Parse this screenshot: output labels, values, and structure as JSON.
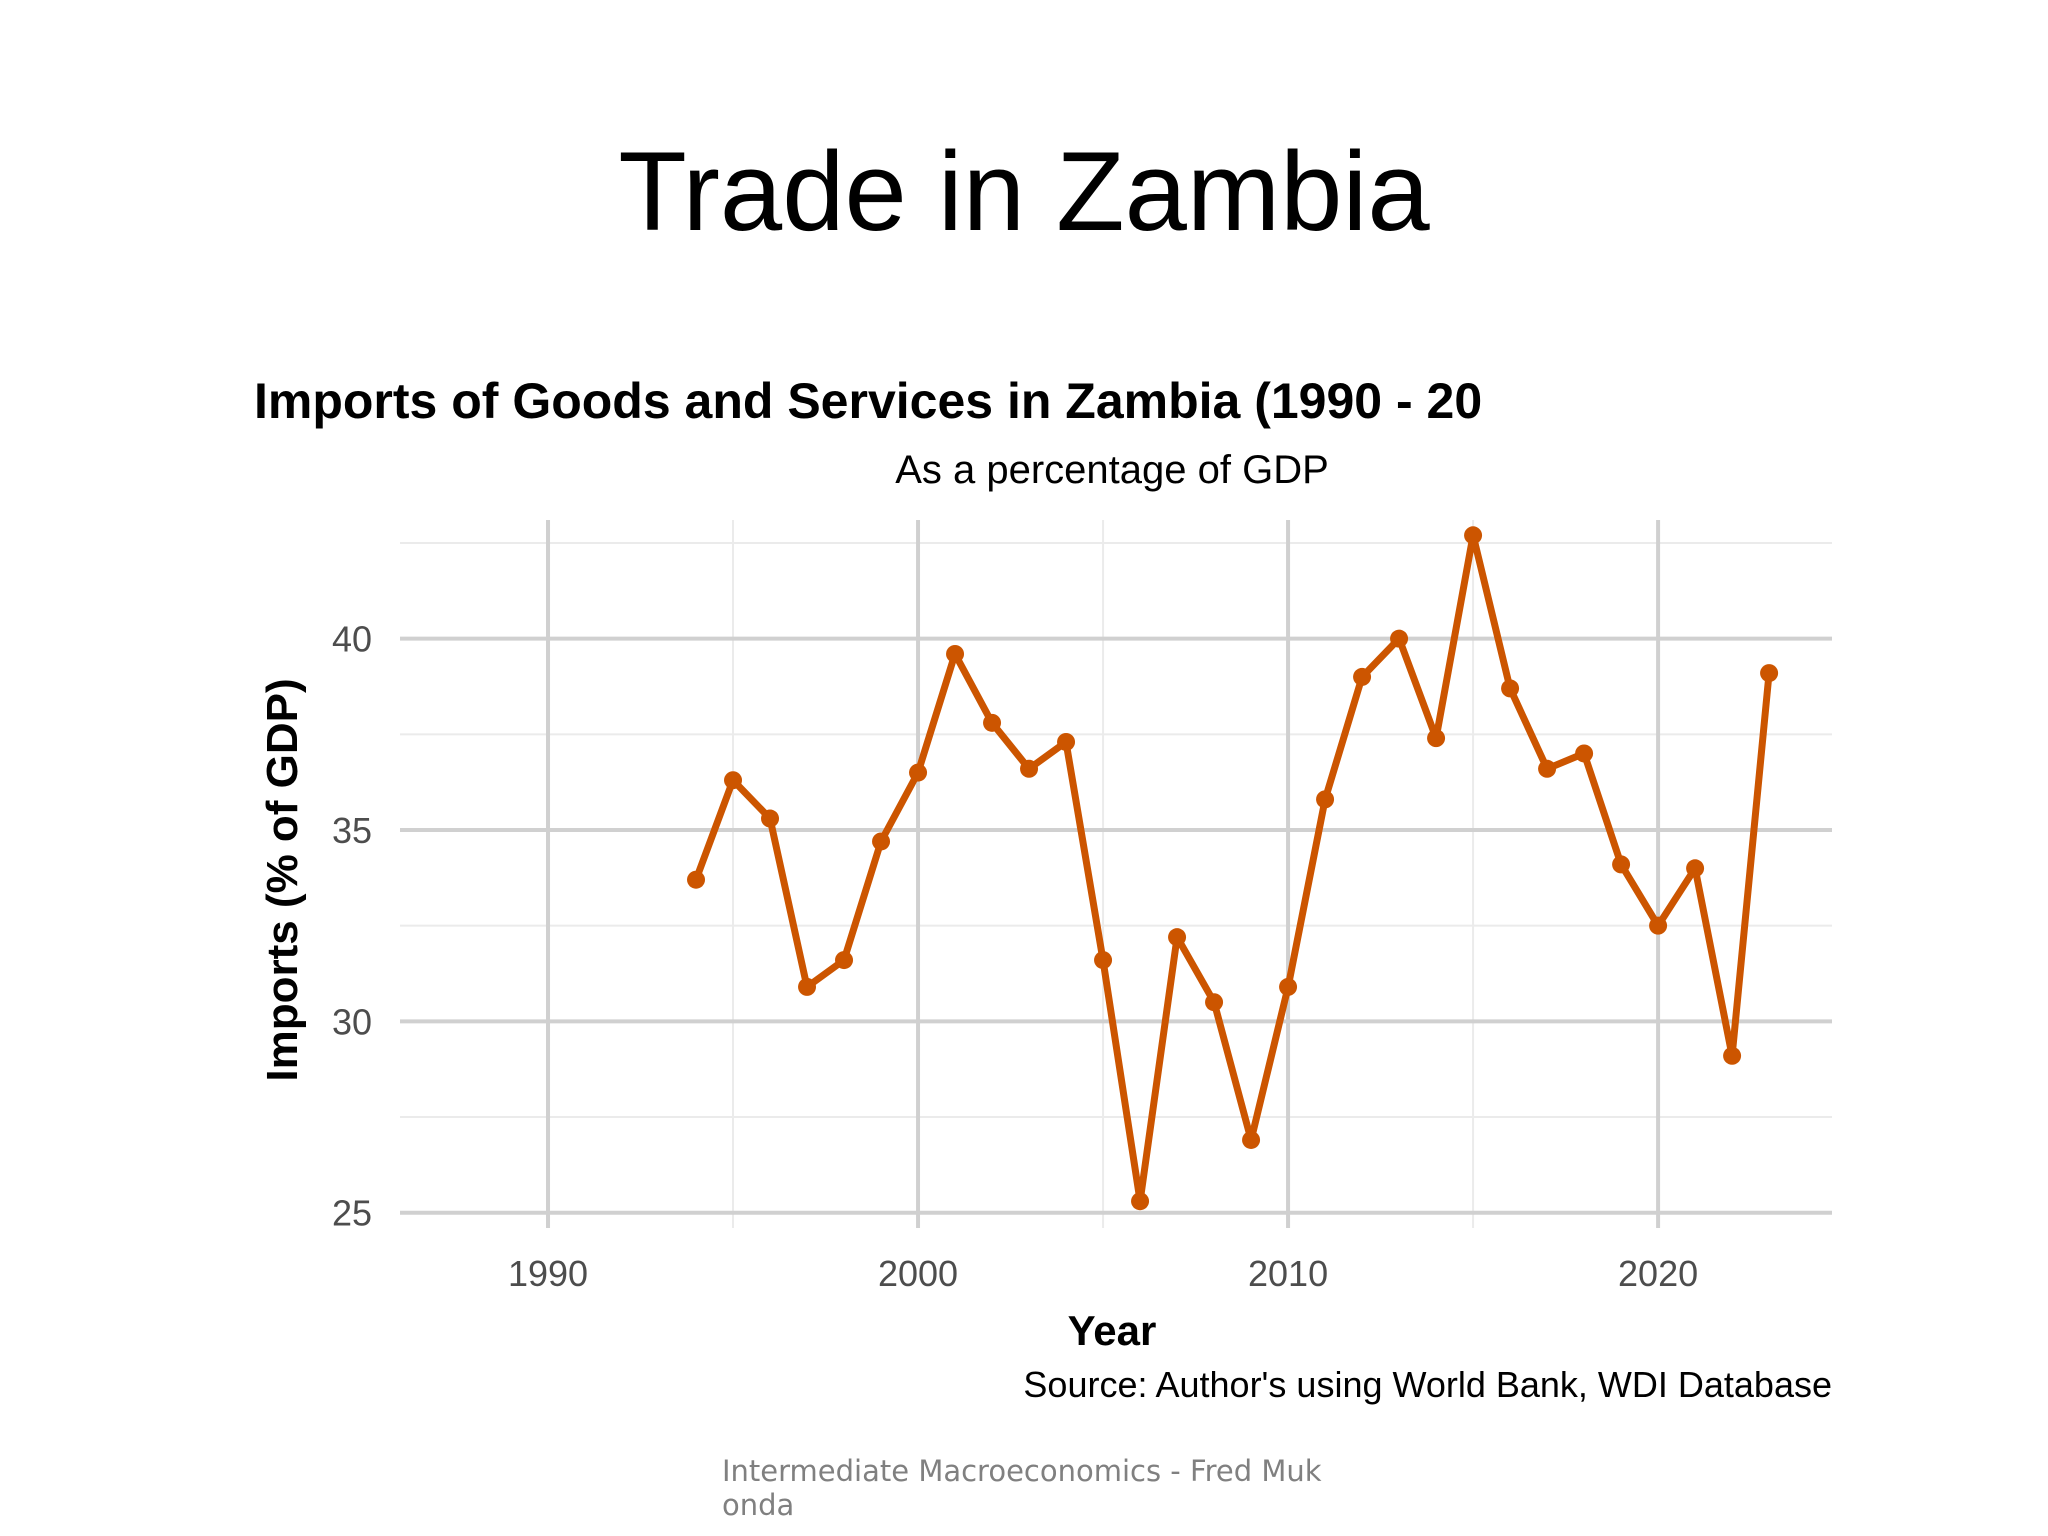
{
  "slide": {
    "title": "Trade in Zambia",
    "footer": "Intermediate Macroeconomics - Fred Mukonda"
  },
  "chart_data": {
    "type": "line",
    "title": "Imports of Goods and Services in Zambia (1990 - 20",
    "subtitle": "As a percentage of GDP",
    "xlabel": "Year",
    "ylabel": "Imports (% of GDP)",
    "caption": "Source: Author's using World Bank, WDI Database",
    "xlim": [
      1986,
      2024.7
    ],
    "ylim": [
      24.6,
      43.1
    ],
    "x_ticks": [
      1990,
      2000,
      2010,
      2020
    ],
    "y_ticks": [
      25,
      30,
      35,
      40
    ],
    "grid": true,
    "line_color": "#cc5500",
    "series": [
      {
        "x": [
          1994,
          1995,
          1996,
          1997,
          1998,
          1999,
          2000,
          2001,
          2002,
          2003,
          2004,
          2005,
          2006,
          2007,
          2008,
          2009,
          2010,
          2011,
          2012,
          2013,
          2014,
          2015,
          2016,
          2017,
          2018,
          2019,
          2020,
          2021,
          2022,
          2023
        ],
        "y": [
          33.7,
          36.3,
          35.3,
          30.9,
          31.6,
          34.7,
          36.5,
          39.6,
          37.8,
          36.6,
          37.3,
          31.6,
          25.3,
          32.2,
          30.5,
          26.9,
          30.9,
          35.8,
          39.0,
          40.0,
          37.4,
          42.7,
          38.7,
          36.6,
          37.0,
          34.1,
          32.5,
          34.0,
          29.1,
          39.1
        ]
      }
    ]
  }
}
